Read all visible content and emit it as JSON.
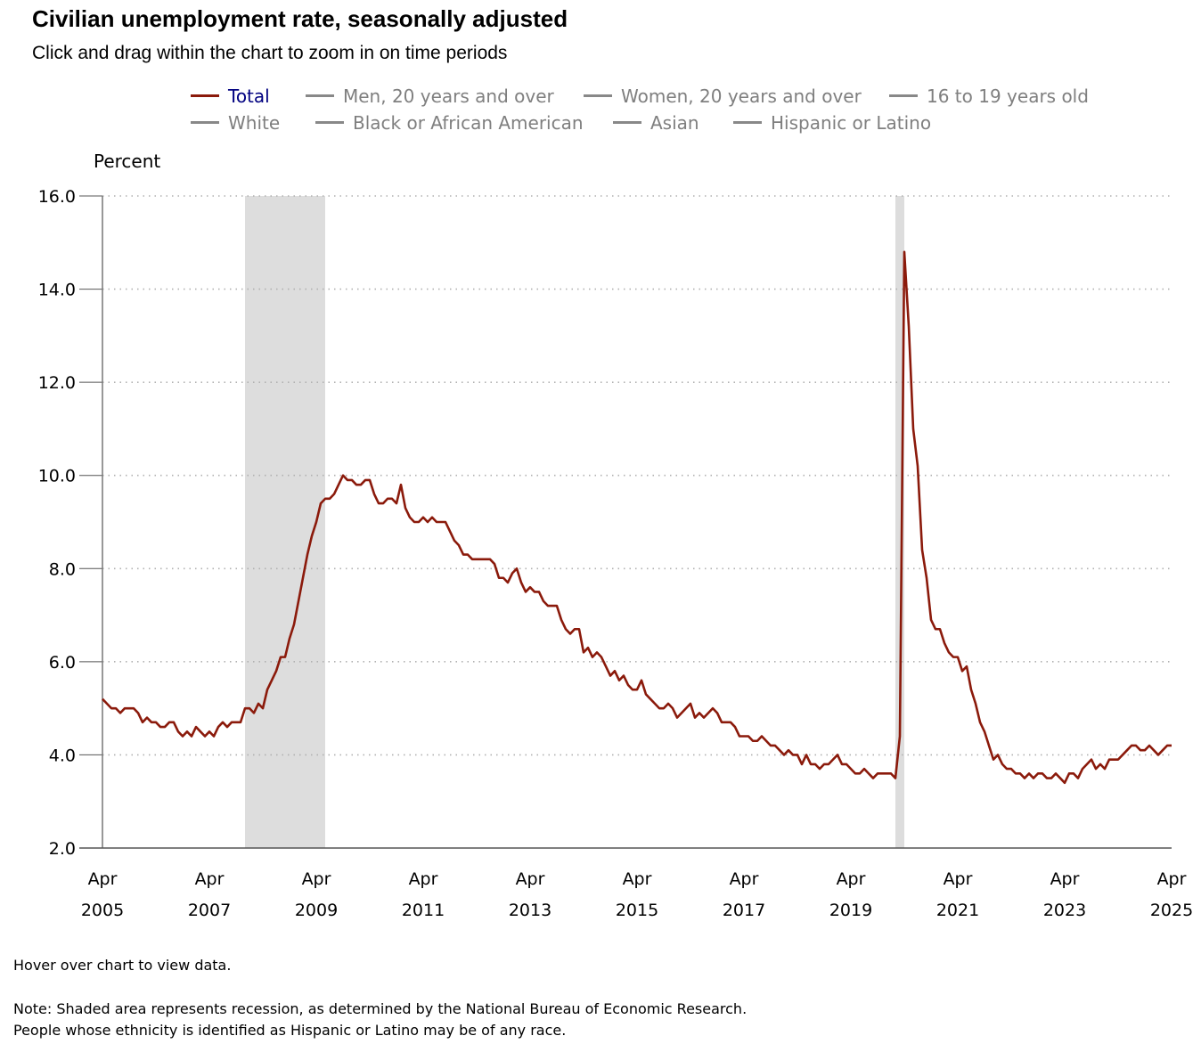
{
  "title": "Civilian unemployment rate, seasonally adjusted",
  "subtitle": "Click and drag within the chart to zoom in on time periods",
  "legend": [
    {
      "label": "Total",
      "active": true
    },
    {
      "label": "Men, 20 years and over",
      "active": false
    },
    {
      "label": "Women, 20 years and over",
      "active": false
    },
    {
      "label": "16 to 19 years old",
      "active": false
    },
    {
      "label": "White",
      "active": false
    },
    {
      "label": "Black or African American",
      "active": false
    },
    {
      "label": "Asian",
      "active": false
    },
    {
      "label": "Hispanic or Latino",
      "active": false
    }
  ],
  "hover_note": "Hover over chart to view data.",
  "note_line1": "Note: Shaded area represents recession, as determined by the National Bureau of Economic Research.",
  "note_line2": "People whose ethnicity is identified as Hispanic or Latino may be of any race.",
  "colors": {
    "total_line": "#8b1a0b",
    "recession_fill": "#dddddd",
    "gridline": "#b0b0b0",
    "axis": "#333333"
  },
  "chart_data": {
    "type": "line",
    "title": "Civilian unemployment rate, seasonally adjusted",
    "ylabel": "Percent",
    "xlabel": "",
    "ylim": [
      2.0,
      16.0
    ],
    "yticks": [
      2.0,
      4.0,
      6.0,
      8.0,
      10.0,
      12.0,
      14.0,
      16.0
    ],
    "ytick_labels": [
      "2.0",
      "4.0",
      "6.0",
      "8.0",
      "10.0",
      "12.0",
      "14.0",
      "16.0"
    ],
    "xrange": [
      "Apr 2005",
      "Apr 2025"
    ],
    "xticks": [
      {
        "month": "Apr",
        "year": "2005"
      },
      {
        "month": "Apr",
        "year": "2007"
      },
      {
        "month": "Apr",
        "year": "2009"
      },
      {
        "month": "Apr",
        "year": "2011"
      },
      {
        "month": "Apr",
        "year": "2013"
      },
      {
        "month": "Apr",
        "year": "2015"
      },
      {
        "month": "Apr",
        "year": "2017"
      },
      {
        "month": "Apr",
        "year": "2019"
      },
      {
        "month": "Apr",
        "year": "2021"
      },
      {
        "month": "Apr",
        "year": "2023"
      },
      {
        "month": "Apr",
        "year": "2025"
      }
    ],
    "grid": true,
    "legend_position": "top",
    "recessions": [
      {
        "start": "Dec 2007",
        "end": "Jun 2009"
      },
      {
        "start": "Feb 2020",
        "end": "Apr 2020"
      }
    ],
    "series": [
      {
        "name": "Total",
        "start": "Apr 2005",
        "frequency": "monthly",
        "values": [
          5.2,
          5.1,
          5.0,
          5.0,
          4.9,
          5.0,
          5.0,
          5.0,
          4.9,
          4.7,
          4.8,
          4.7,
          4.7,
          4.6,
          4.6,
          4.7,
          4.7,
          4.5,
          4.4,
          4.5,
          4.4,
          4.6,
          4.5,
          4.4,
          4.5,
          4.4,
          4.6,
          4.7,
          4.6,
          4.7,
          4.7,
          4.7,
          5.0,
          5.0,
          4.9,
          5.1,
          5.0,
          5.4,
          5.6,
          5.8,
          6.1,
          6.1,
          6.5,
          6.8,
          7.3,
          7.8,
          8.3,
          8.7,
          9.0,
          9.4,
          9.5,
          9.5,
          9.6,
          9.8,
          10.0,
          9.9,
          9.9,
          9.8,
          9.8,
          9.9,
          9.9,
          9.6,
          9.4,
          9.4,
          9.5,
          9.5,
          9.4,
          9.8,
          9.3,
          9.1,
          9.0,
          9.0,
          9.1,
          9.0,
          9.1,
          9.0,
          9.0,
          9.0,
          8.8,
          8.6,
          8.5,
          8.3,
          8.3,
          8.2,
          8.2,
          8.2,
          8.2,
          8.2,
          8.1,
          7.8,
          7.8,
          7.7,
          7.9,
          8.0,
          7.7,
          7.5,
          7.6,
          7.5,
          7.5,
          7.3,
          7.2,
          7.2,
          7.2,
          6.9,
          6.7,
          6.6,
          6.7,
          6.7,
          6.2,
          6.3,
          6.1,
          6.2,
          6.1,
          5.9,
          5.7,
          5.8,
          5.6,
          5.7,
          5.5,
          5.4,
          5.4,
          5.6,
          5.3,
          5.2,
          5.1,
          5.0,
          5.0,
          5.1,
          5.0,
          4.8,
          4.9,
          5.0,
          5.1,
          4.8,
          4.9,
          4.8,
          4.9,
          5.0,
          4.9,
          4.7,
          4.7,
          4.7,
          4.6,
          4.4,
          4.4,
          4.4,
          4.3,
          4.3,
          4.4,
          4.3,
          4.2,
          4.2,
          4.1,
          4.0,
          4.1,
          4.0,
          4.0,
          3.8,
          4.0,
          3.8,
          3.8,
          3.7,
          3.8,
          3.8,
          3.9,
          4.0,
          3.8,
          3.8,
          3.7,
          3.6,
          3.6,
          3.7,
          3.6,
          3.5,
          3.6,
          3.6,
          3.6,
          3.6,
          3.5,
          4.4,
          14.8,
          13.2,
          11.0,
          10.2,
          8.4,
          7.8,
          6.9,
          6.7,
          6.7,
          6.4,
          6.2,
          6.1,
          6.1,
          5.8,
          5.9,
          5.4,
          5.1,
          4.7,
          4.5,
          4.2,
          3.9,
          4.0,
          3.8,
          3.7,
          3.7,
          3.6,
          3.6,
          3.5,
          3.6,
          3.5,
          3.6,
          3.6,
          3.5,
          3.5,
          3.6,
          3.5,
          3.4,
          3.6,
          3.6,
          3.5,
          3.7,
          3.8,
          3.9,
          3.7,
          3.8,
          3.7,
          3.9,
          3.9,
          3.9,
          4.0,
          4.1,
          4.2,
          4.2,
          4.1,
          4.1,
          4.2,
          4.1,
          4.0,
          4.1,
          4.2,
          4.2
        ]
      }
    ]
  }
}
